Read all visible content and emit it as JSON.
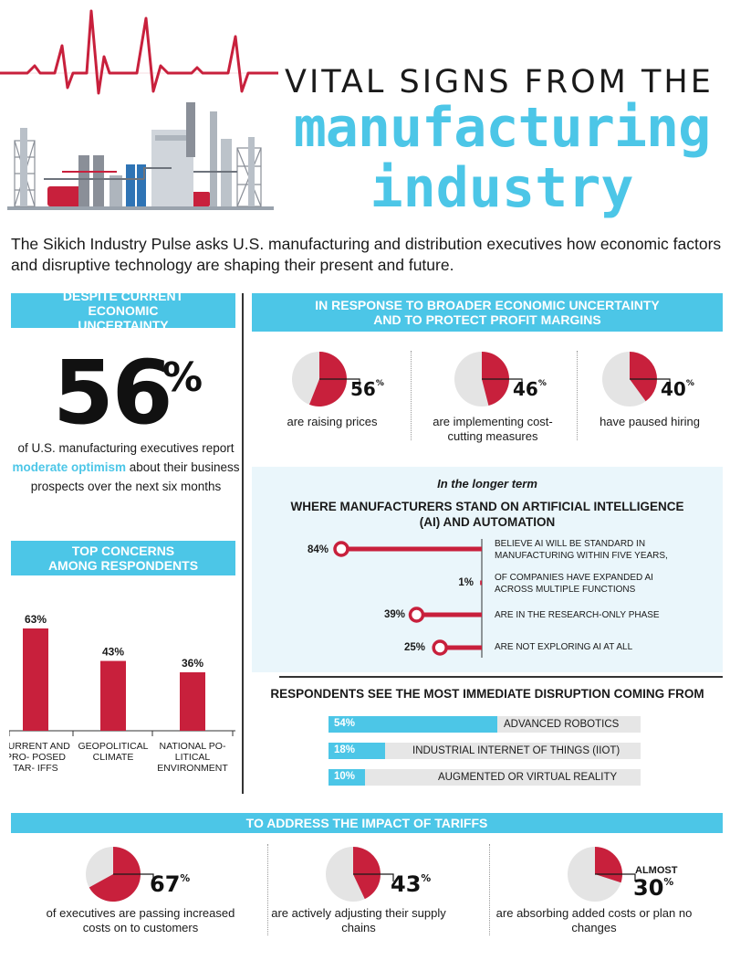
{
  "header": {
    "title_line1": "VITAL SIGNS FROM THE",
    "title_line2": "manufacturing",
    "title_line3": "industry",
    "intro": "The Sikich Industry Pulse asks U.S. manufacturing and distribution executives how economic factors and disruptive technology are shaping their present and future."
  },
  "colors": {
    "accent": "#4cc6e7",
    "red": "#c8203c",
    "gray": "#e4e4e4",
    "dark": "#1a1a1a"
  },
  "optimism": {
    "heading": "DESPITE CURRENT ECONOMIC UNCERTAINTY",
    "value": "56",
    "pct": "%",
    "text_before": "of U.S. manufacturing executives report",
    "highlight": "moderate optimism",
    "text_after": "about their business prospects over the next six months"
  },
  "response": {
    "heading": "IN RESPONSE TO BROADER ECONOMIC UNCERTAINTY AND TO PROTECT PROFIT MARGINS",
    "items": [
      {
        "value": "56",
        "caption": "are raising prices"
      },
      {
        "value": "46",
        "caption": "are implementing cost-cutting measures"
      },
      {
        "value": "40",
        "caption": "have paused hiring"
      }
    ]
  },
  "ai": {
    "subheading": "In the longer term",
    "heading": "WHERE MANUFACTURERS STAND ON ARTIFICIAL INTELLIGENCE (AI) AND AUTOMATION",
    "items": [
      {
        "value": "84%",
        "label": "BELIEVE AI WILL BE STANDARD IN MANUFACTURING WITHIN FIVE YEARS,"
      },
      {
        "value": "1%",
        "label": "OF COMPANIES HAVE EXPANDED AI ACROSS MULTIPLE FUNCTIONS"
      },
      {
        "value": "39%",
        "label": "ARE IN THE RESEARCH-ONLY PHASE"
      },
      {
        "value": "25%",
        "label": "ARE NOT EXPLORING AI AT ALL"
      }
    ]
  },
  "disruption": {
    "heading": "RESPONDENTS SEE THE MOST IMMEDIATE DISRUPTION COMING FROM",
    "items": [
      {
        "value": "54%",
        "label": "ADVANCED ROBOTICS"
      },
      {
        "value": "18%",
        "label": "INDUSTRIAL INTERNET OF THINGS (IIOT)"
      },
      {
        "value": "10%",
        "label": "AUGMENTED OR VIRTUAL REALITY"
      }
    ]
  },
  "concerns": {
    "heading": "TOP CONCERNS AMONG RESPONDENTS"
  },
  "tariffs": {
    "heading": "TO ADDRESS THE IMPACT OF TARIFFS",
    "items": [
      {
        "prefix": "",
        "value": "67",
        "caption": "of executives are passing increased costs on to customers"
      },
      {
        "prefix": "",
        "value": "43",
        "caption": "are actively adjusting their supply chains"
      },
      {
        "prefix": "ALMOST",
        "value": "30",
        "caption": "are absorbing added costs or plan no changes"
      }
    ]
  },
  "chart_data": [
    {
      "type": "bar",
      "title": "TOP CONCERNS AMONG RESPONDENTS",
      "categories": [
        "CURRENT AND PROPOSED TARIFFS",
        "GEOPOLITICAL CLIMATE",
        "NATIONAL POLITICAL ENVIRONMENT"
      ],
      "category_labels": [
        "CURRENT AND PRO- POSED TAR- IFFS",
        "GEOPOLITICAL CLIMATE",
        "NATIONAL PO- LITICAL ENVIRONMENT"
      ],
      "values": [
        63,
        43,
        36
      ],
      "value_labels": [
        "63%",
        "43%",
        "36%"
      ],
      "ylim": [
        0,
        63
      ]
    },
    {
      "type": "pie",
      "title": "IN RESPONSE TO BROADER ECONOMIC UNCERTAINTY AND TO PROTECT PROFIT MARGINS",
      "series": [
        {
          "name": "are raising prices",
          "values": [
            56,
            44
          ]
        },
        {
          "name": "are implementing cost-cutting measures",
          "values": [
            46,
            54
          ]
        },
        {
          "name": "have paused hiring",
          "values": [
            40,
            60
          ]
        }
      ]
    },
    {
      "type": "bar",
      "title": "WHERE MANUFACTURERS STAND ON ARTIFICIAL INTELLIGENCE (AI) AND AUTOMATION",
      "orientation": "horizontal",
      "categories": [
        "BELIEVE AI WILL BE STANDARD IN MANUFACTURING WITHIN FIVE YEARS,",
        "OF COMPANIES HAVE EXPANDED AI ACROSS MULTIPLE FUNCTIONS",
        "ARE IN THE RESEARCH-ONLY PHASE",
        "ARE NOT EXPLORING AI AT ALL"
      ],
      "values": [
        84,
        1,
        39,
        25
      ],
      "xlim": [
        0,
        100
      ]
    },
    {
      "type": "bar",
      "title": "RESPONDENTS SEE THE MOST IMMEDIATE DISRUPTION COMING FROM",
      "orientation": "horizontal",
      "categories": [
        "ADVANCED ROBOTICS",
        "INDUSTRIAL INTERNET OF THINGS (IIOT)",
        "AUGMENTED OR VIRTUAL REALITY"
      ],
      "values": [
        54,
        18,
        10
      ],
      "xlim": [
        0,
        100
      ]
    },
    {
      "type": "pie",
      "title": "TO ADDRESS THE IMPACT OF TARIFFS",
      "series": [
        {
          "name": "of executives are passing increased costs on to customers",
          "values": [
            67,
            33
          ]
        },
        {
          "name": "are actively adjusting their supply chains",
          "values": [
            43,
            57
          ]
        },
        {
          "name": "are absorbing added costs or plan no changes",
          "values": [
            30,
            70
          ]
        }
      ]
    }
  ]
}
